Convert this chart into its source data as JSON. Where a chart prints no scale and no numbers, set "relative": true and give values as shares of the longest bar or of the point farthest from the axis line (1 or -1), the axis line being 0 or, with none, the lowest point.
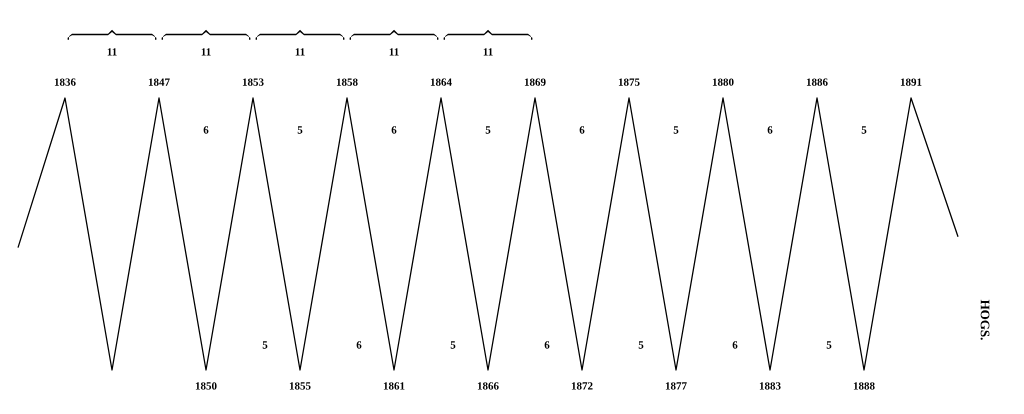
{
  "chart_data": {
    "type": "line",
    "title": "HOGS.",
    "relative": true,
    "color": "#000000",
    "categories": [
      null,
      "1836",
      null,
      "1847",
      "1850",
      "1853",
      "1855",
      "1858",
      "1861",
      "1864",
      "1866",
      "1869",
      "1872",
      "1875",
      "1877",
      "1880",
      "1883",
      "1886",
      "1888",
      "1891",
      null
    ],
    "values": [
      0.45,
      1,
      0,
      1,
      0,
      1,
      0,
      1,
      0,
      1,
      0,
      1,
      0,
      1,
      0,
      1,
      0,
      1,
      0,
      1,
      0.49
    ],
    "annotations": [
      "11",
      "11",
      "11",
      "11",
      "11",
      "6",
      "5",
      "6",
      "5",
      "6",
      "5",
      "6",
      "5",
      "5",
      "6",
      "5",
      "6",
      "5",
      "6",
      "5"
    ]
  }
}
